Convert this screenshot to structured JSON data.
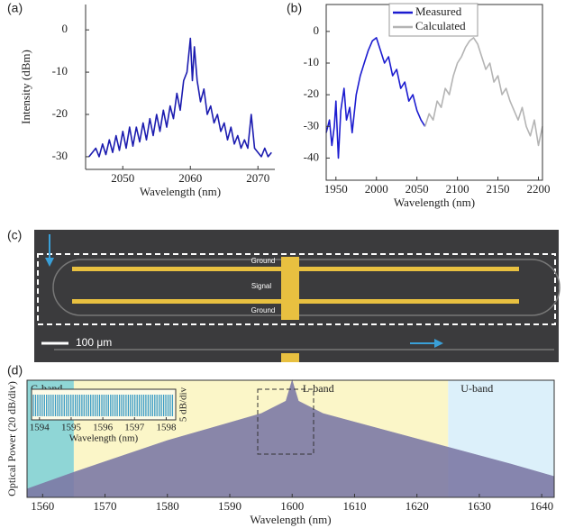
{
  "chart_data": [
    {
      "type": "line",
      "label": "(a)",
      "xlabel": "Wavelength (nm)",
      "ylabel": "Intensity (dBm)",
      "xlim": [
        2044.5,
        2072.5
      ],
      "xticks": [
        2050,
        2060,
        2070
      ],
      "ylim": [
        -33,
        6
      ],
      "yticks": [
        0,
        -10,
        -20,
        -30
      ],
      "frame": false,
      "series": [
        {
          "color": "#1c1cb0",
          "x": [
            2045,
            2046,
            2046.5,
            2047,
            2047.5,
            2048,
            2048.5,
            2049,
            2049.5,
            2050,
            2050.5,
            2051,
            2051.5,
            2052,
            2052.5,
            2053,
            2053.5,
            2054,
            2054.5,
            2055,
            2055.5,
            2056,
            2056.5,
            2057,
            2057.5,
            2058,
            2058.5,
            2059,
            2059.5,
            2060,
            2060.3,
            2060.6,
            2061,
            2061.5,
            2062,
            2062.5,
            2063,
            2063.5,
            2064,
            2064.5,
            2065,
            2065.5,
            2066,
            2066.5,
            2067,
            2067.5,
            2068,
            2068.5,
            2069,
            2069.5,
            2070,
            2070.5,
            2071,
            2071.5,
            2072
          ],
          "values": [
            -30,
            -28,
            -30,
            -27,
            -29.5,
            -26,
            -29,
            -25,
            -28.5,
            -24,
            -28,
            -23,
            -27.5,
            -23,
            -26.5,
            -22,
            -26,
            -21,
            -25,
            -20,
            -24,
            -19,
            -23,
            -18,
            -21,
            -15,
            -19,
            -12,
            -10,
            -2,
            -12,
            -4,
            -12,
            -17,
            -14,
            -20,
            -18,
            -22,
            -20,
            -24,
            -22,
            -26,
            -23,
            -27,
            -25,
            -28,
            -26,
            -28,
            -20,
            -28,
            -29,
            -30,
            -28,
            -30,
            -29
          ]
        }
      ]
    },
    {
      "type": "line",
      "label": "(b)",
      "xlabel": "Wavelength (nm)",
      "xlim": [
        1938,
        2205
      ],
      "xticks": [
        1950,
        2000,
        2050,
        2100,
        2150,
        2200
      ],
      "ylim": [
        -47,
        8.5
      ],
      "yticks": [
        0,
        -10,
        -20,
        -30,
        -40
      ],
      "frame": true,
      "series": [
        {
          "name": "Measured",
          "color": "#1c1cd0",
          "x": [
            1938,
            1942,
            1945,
            1948,
            1950,
            1953,
            1956,
            1960,
            1963,
            1967,
            1970,
            1975,
            1980,
            1985,
            1990,
            1995,
            2000,
            2005,
            2010,
            2015,
            2020,
            2025,
            2030,
            2035,
            2040,
            2045,
            2050,
            2055,
            2060
          ],
          "values": [
            -32,
            -28,
            -36,
            -30,
            -22,
            -40,
            -25,
            -18,
            -28,
            -24,
            -32,
            -20,
            -14,
            -10,
            -6,
            -3,
            -2,
            -6,
            -10,
            -8,
            -14,
            -12,
            -18,
            -16,
            -22,
            -20,
            -25,
            -28,
            -30
          ]
        },
        {
          "name": "Calculated",
          "color": "#b4b4b4",
          "x": [
            2060,
            2065,
            2070,
            2075,
            2080,
            2085,
            2090,
            2095,
            2100,
            2105,
            2110,
            2115,
            2120,
            2125,
            2130,
            2135,
            2140,
            2145,
            2150,
            2155,
            2160,
            2165,
            2170,
            2175,
            2180,
            2185,
            2190,
            2195,
            2200,
            2205
          ],
          "values": [
            -30,
            -26,
            -28,
            -22,
            -24,
            -18,
            -20,
            -14,
            -10,
            -8,
            -5,
            -3,
            -2,
            -4,
            -8,
            -12,
            -10,
            -16,
            -14,
            -20,
            -18,
            -22,
            -25,
            -28,
            -24,
            -30,
            -33,
            -28,
            -36,
            -30
          ]
        }
      ]
    },
    {
      "type": "area",
      "label": "(d)",
      "xlabel": "Wavelength (nm)",
      "ylabel": "Optical Power (20 dB/div)",
      "xlim": [
        1557.5,
        1642
      ],
      "xticks": [
        1560,
        1570,
        1580,
        1590,
        1600,
        1610,
        1620,
        1630,
        1640
      ],
      "ylim": [
        0,
        140
      ],
      "frame": true,
      "bands": [
        {
          "name": "C-band",
          "range": [
            1557.5,
            1565
          ],
          "color": "#8fd6d6"
        },
        {
          "name": "L-band",
          "range": [
            1565,
            1625
          ],
          "color": "#fbf6c8"
        },
        {
          "name": "U-band",
          "range": [
            1625,
            1642
          ],
          "color": "#dcf0fa"
        }
      ],
      "series": [
        {
          "color": "#7d7aa6",
          "x": [
            1557.5,
            1565,
            1580,
            1595,
            1599,
            1600,
            1601,
            1605,
            1620,
            1635,
            1642
          ],
          "values": [
            10,
            30,
            68,
            100,
            115,
            140,
            115,
            100,
            70,
            40,
            25
          ]
        }
      ],
      "inset": {
        "xlim": [
          1593.75,
          1598.3
        ],
        "xticks": [
          1594,
          1595,
          1596,
          1597,
          1598
        ],
        "xlabel": "Wavelength (nm)",
        "ylabel": "5 dB/div"
      }
    }
  ],
  "image": {
    "label": "(c)",
    "labels": [
      "Ground",
      "Signal",
      "Ground"
    ],
    "scale_bar": "100 μm"
  }
}
